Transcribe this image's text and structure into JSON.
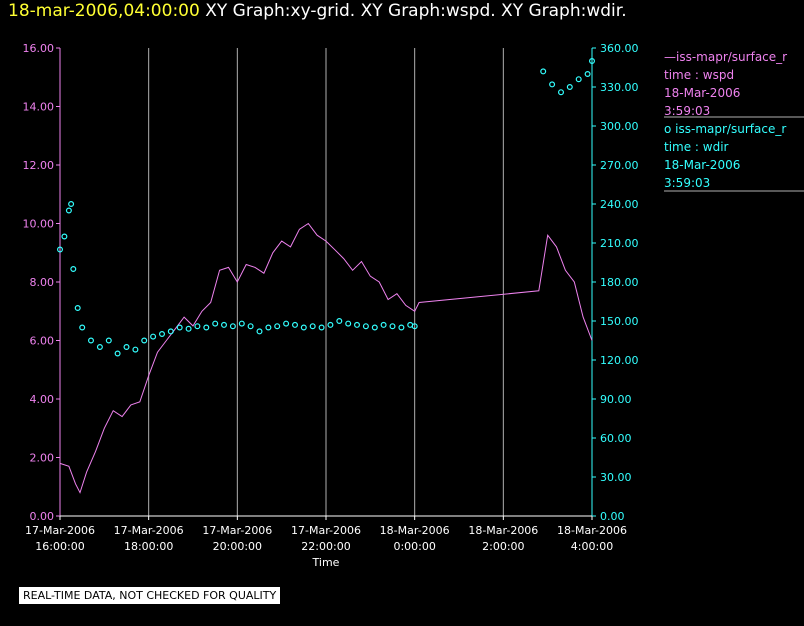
{
  "title": {
    "date": "18-mar-2006,04:00:00",
    "graphs": "XY Graph:xy-grid.  XY Graph:wspd.  XY Graph:wdir."
  },
  "colors": {
    "background": "#000000",
    "wspd": "#ee82ee",
    "wdir": "#33ffff",
    "grid": "#b0b0b0",
    "time_axis": "#ffffff",
    "title_date": "#ffff33"
  },
  "legend": [
    {
      "marker": "—",
      "name": "iss-mapr/surface_r",
      "line2": "time : wspd",
      "date": "18-Mar-2006",
      "time": "3:59:03"
    },
    {
      "marker": "o",
      "name": "iss-mapr/surface_r",
      "line2": "time : wdir",
      "date": "18-Mar-2006",
      "time": "3:59:03"
    }
  ],
  "notice": "REAL-TIME DATA, NOT CHECKED FOR QUALITY",
  "chart_data": {
    "type": "line",
    "xlabel": "Time",
    "xlim": [
      0,
      12
    ],
    "x_unit": "hours since 17-Mar-2006 16:00:00",
    "x_ticks": [
      {
        "x": 0,
        "date": "17-Mar-2006",
        "time": "16:00:00"
      },
      {
        "x": 2,
        "date": "17-Mar-2006",
        "time": "18:00:00"
      },
      {
        "x": 4,
        "date": "17-Mar-2006",
        "time": "20:00:00"
      },
      {
        "x": 6,
        "date": "17-Mar-2006",
        "time": "22:00:00"
      },
      {
        "x": 8,
        "date": "18-Mar-2006",
        "time": "0:00:00"
      },
      {
        "x": 10,
        "date": "18-Mar-2006",
        "time": "2:00:00"
      },
      {
        "x": 12,
        "date": "18-Mar-2006",
        "time": "4:00:00"
      }
    ],
    "y_left": {
      "min": 0,
      "max": 16,
      "ticks": [
        "0.00",
        "2.00",
        "4.00",
        "6.00",
        "8.00",
        "10.00",
        "12.00",
        "14.00",
        "16.00"
      ]
    },
    "y_right": {
      "min": 0,
      "max": 360,
      "ticks": [
        "0.00",
        "30.00",
        "60.00",
        "90.00",
        "120.00",
        "150.00",
        "180.00",
        "210.00",
        "240.00",
        "270.00",
        "300.00",
        "330.00",
        "360.00"
      ]
    },
    "grid": true,
    "series": [
      {
        "name": "wspd",
        "axis": "left",
        "style": "line",
        "points": [
          [
            0,
            1.8
          ],
          [
            0.2,
            1.7
          ],
          [
            0.35,
            1.1
          ],
          [
            0.45,
            0.8
          ],
          [
            0.6,
            1.5
          ],
          [
            0.8,
            2.2
          ],
          [
            1.0,
            3.0
          ],
          [
            1.2,
            3.6
          ],
          [
            1.4,
            3.4
          ],
          [
            1.6,
            3.8
          ],
          [
            1.8,
            3.9
          ],
          [
            2.0,
            4.8
          ],
          [
            2.2,
            5.6
          ],
          [
            2.4,
            6.0
          ],
          [
            2.6,
            6.4
          ],
          [
            2.8,
            6.8
          ],
          [
            3.0,
            6.5
          ],
          [
            3.2,
            7.0
          ],
          [
            3.4,
            7.3
          ],
          [
            3.6,
            8.4
          ],
          [
            3.8,
            8.5
          ],
          [
            4.0,
            8.0
          ],
          [
            4.2,
            8.6
          ],
          [
            4.4,
            8.5
          ],
          [
            4.6,
            8.3
          ],
          [
            4.8,
            9.0
          ],
          [
            5.0,
            9.4
          ],
          [
            5.2,
            9.2
          ],
          [
            5.4,
            9.8
          ],
          [
            5.6,
            10.0
          ],
          [
            5.8,
            9.6
          ],
          [
            6.0,
            9.4
          ],
          [
            6.2,
            9.1
          ],
          [
            6.4,
            8.8
          ],
          [
            6.6,
            8.4
          ],
          [
            6.8,
            8.7
          ],
          [
            7.0,
            8.2
          ],
          [
            7.2,
            8.0
          ],
          [
            7.4,
            7.4
          ],
          [
            7.6,
            7.6
          ],
          [
            7.8,
            7.2
          ],
          [
            8.0,
            7.0
          ],
          [
            8.1,
            7.3
          ],
          [
            10.8,
            7.7
          ],
          [
            11.0,
            9.6
          ],
          [
            11.2,
            9.2
          ],
          [
            11.4,
            8.4
          ],
          [
            11.6,
            8.0
          ],
          [
            11.8,
            6.8
          ],
          [
            12.0,
            6.0
          ]
        ]
      },
      {
        "name": "wdir",
        "axis": "right",
        "style": "markers",
        "points": [
          [
            0.0,
            205
          ],
          [
            0.1,
            215
          ],
          [
            0.2,
            235
          ],
          [
            0.25,
            240
          ],
          [
            0.3,
            190
          ],
          [
            0.4,
            160
          ],
          [
            0.5,
            145
          ],
          [
            0.7,
            135
          ],
          [
            0.9,
            130
          ],
          [
            1.1,
            135
          ],
          [
            1.3,
            125
          ],
          [
            1.5,
            130
          ],
          [
            1.7,
            128
          ],
          [
            1.9,
            135
          ],
          [
            2.1,
            138
          ],
          [
            2.3,
            140
          ],
          [
            2.5,
            142
          ],
          [
            2.7,
            145
          ],
          [
            2.9,
            144
          ],
          [
            3.1,
            146
          ],
          [
            3.3,
            145
          ],
          [
            3.5,
            148
          ],
          [
            3.7,
            147
          ],
          [
            3.9,
            146
          ],
          [
            4.1,
            148
          ],
          [
            4.3,
            146
          ],
          [
            4.5,
            142
          ],
          [
            4.7,
            145
          ],
          [
            4.9,
            146
          ],
          [
            5.1,
            148
          ],
          [
            5.3,
            147
          ],
          [
            5.5,
            145
          ],
          [
            5.7,
            146
          ],
          [
            5.9,
            145
          ],
          [
            6.1,
            147
          ],
          [
            6.3,
            150
          ],
          [
            6.5,
            148
          ],
          [
            6.7,
            147
          ],
          [
            6.9,
            146
          ],
          [
            7.1,
            145
          ],
          [
            7.3,
            147
          ],
          [
            7.5,
            146
          ],
          [
            7.7,
            145
          ],
          [
            7.9,
            147
          ],
          [
            8.0,
            146
          ],
          [
            10.9,
            342
          ],
          [
            11.1,
            332
          ],
          [
            11.3,
            326
          ],
          [
            11.5,
            330
          ],
          [
            11.7,
            336
          ],
          [
            11.9,
            340
          ],
          [
            12.0,
            350
          ]
        ]
      }
    ]
  }
}
